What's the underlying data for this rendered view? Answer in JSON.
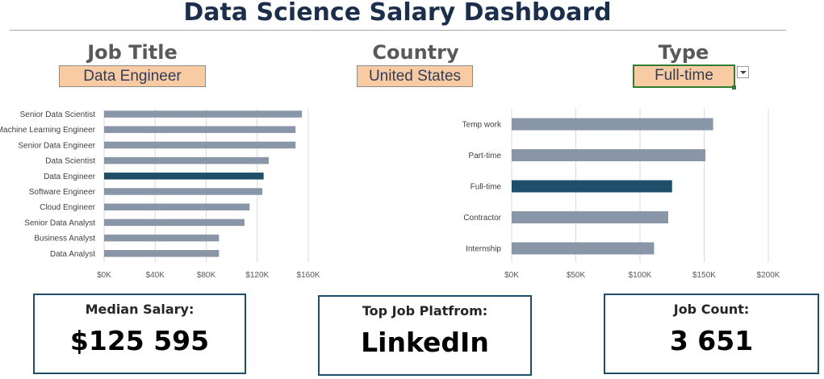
{
  "title": "Data Science Salary Dashboard",
  "filters": {
    "job_title": {
      "label": "Job Title",
      "value": "Data Engineer"
    },
    "country": {
      "label": "Country",
      "value": "United States"
    },
    "type": {
      "label": "Type",
      "value": "Full-time"
    }
  },
  "colors": {
    "highlight": "#1f4e6b",
    "bar": "#8896a8",
    "filter_fill": "#f8cba2"
  },
  "chart_data": [
    {
      "type": "bar",
      "orientation": "horizontal",
      "categories": [
        "Senior Data Scientist",
        "Machine Learning Engineer",
        "Senior Data Engineer",
        "Data Scientist",
        "Data Engineer",
        "Software Engineer",
        "Cloud Engineer",
        "Senior Data Analyst",
        "Business Analyst",
        "Data Analyst"
      ],
      "values": [
        155000,
        150000,
        150000,
        129000,
        125000,
        124000,
        114000,
        110000,
        90000,
        90000
      ],
      "highlight": "Data Engineer",
      "xlim": [
        0,
        160000
      ],
      "xticks": [
        "$0K",
        "$40K",
        "$80K",
        "$120K",
        "$160K"
      ],
      "grid": "vertical"
    },
    {
      "type": "bar",
      "orientation": "horizontal",
      "categories": [
        "Temp work",
        "Part-time",
        "Full-time",
        "Contractor",
        "Internship"
      ],
      "values": [
        157000,
        151000,
        125000,
        122000,
        111000
      ],
      "highlight": "Full-time",
      "xlim": [
        0,
        200000
      ],
      "xticks": [
        "$0K",
        "$50K",
        "$100K",
        "$150K",
        "$200K"
      ],
      "grid": "vertical"
    }
  ],
  "kpis": {
    "median_salary": {
      "label": "Median Salary:",
      "value": "$125 595"
    },
    "top_platform": {
      "label": "Top Job Platfrom:",
      "value": "LinkedIn"
    },
    "job_count": {
      "label": "Job Count:",
      "value": "3 651"
    }
  }
}
